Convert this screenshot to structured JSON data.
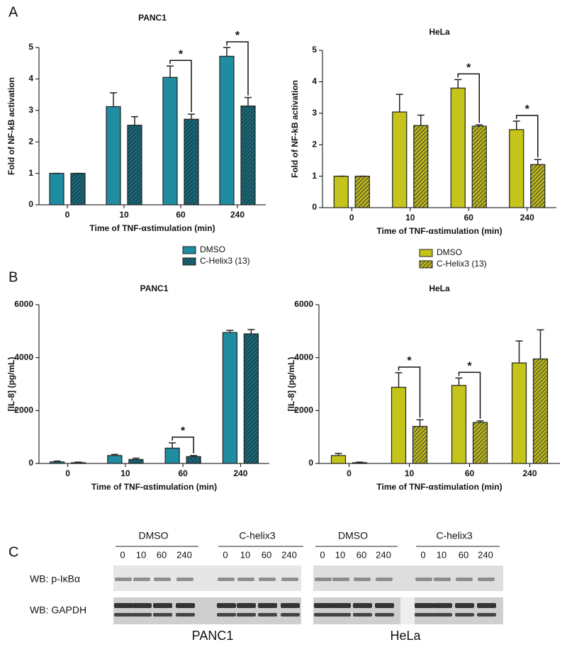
{
  "panel_labels": [
    "A",
    "B",
    "C"
  ],
  "chart_data": [
    {
      "type": "bar",
      "title": "PANC1",
      "x_label": "Time of TNF-αstimulation (min)",
      "y_label": "Fold of NF-kB activation",
      "categories": [
        "0",
        "10",
        "60",
        "240"
      ],
      "series": [
        {
          "name": "DMSO",
          "color": "#1f8ca0",
          "pattern": "solid",
          "values": [
            1,
            3.12,
            4.05,
            4.72
          ],
          "errors": [
            0,
            0.44,
            0.36,
            0.28
          ]
        },
        {
          "name": "C-Helix3 (13)",
          "color": "#17697a",
          "pattern": "hatch",
          "values": [
            1,
            2.53,
            2.72,
            3.14
          ],
          "errors": [
            0,
            0.27,
            0.16,
            0.27
          ]
        }
      ],
      "annotations": [
        null,
        null,
        "*",
        "*"
      ],
      "ylim": [
        0,
        5
      ],
      "yticks": [
        0,
        1,
        2,
        3,
        4,
        5
      ],
      "legend": true
    },
    {
      "type": "bar",
      "title": "HeLa",
      "x_label": "Time of TNF-αstimulation (min)",
      "y_label": "Fold of NF-kB activation",
      "categories": [
        "0",
        "10",
        "60",
        "240"
      ],
      "series": [
        {
          "name": "DMSO",
          "color": "#c4c41a",
          "pattern": "solid",
          "values": [
            1,
            3.04,
            3.8,
            2.48
          ],
          "errors": [
            0,
            0.56,
            0.27,
            0.27
          ]
        },
        {
          "name": "C-Helix3 (13)",
          "color": "#b8b422",
          "pattern": "hatch",
          "values": [
            1,
            2.61,
            2.59,
            1.37
          ],
          "errors": [
            0,
            0.33,
            0.04,
            0.16
          ]
        }
      ],
      "annotations": [
        null,
        null,
        "*",
        "*"
      ],
      "ylim": [
        0,
        5
      ],
      "yticks": [
        0,
        1,
        2,
        3,
        4,
        5
      ],
      "legend": true
    },
    {
      "type": "bar",
      "title": "PANC1",
      "x_label": "Time of TNF-αstimulation (min)",
      "y_label": "[IL-8] (pg/mL)",
      "categories": [
        "0",
        "10",
        "60",
        "240"
      ],
      "series": [
        {
          "name": "DMSO",
          "color": "#1f8ca0",
          "pattern": "solid",
          "values": [
            60,
            300,
            580,
            4950
          ],
          "errors": [
            30,
            40,
            200,
            80
          ]
        },
        {
          "name": "C-Helix3 (13)",
          "color": "#17697a",
          "pattern": "hatch",
          "values": [
            30,
            150,
            260,
            4900
          ],
          "errors": [
            20,
            50,
            40,
            160
          ]
        }
      ],
      "annotations": [
        null,
        null,
        "*",
        null
      ],
      "ylim": [
        0,
        6000
      ],
      "yticks": [
        0,
        2000,
        4000,
        6000
      ],
      "legend": false
    },
    {
      "type": "bar",
      "title": "HeLa",
      "x_label": "Time of TNF-αstimulation (min)",
      "y_label": "[IL-8] (pg/mL)",
      "categories": [
        "0",
        "10",
        "60",
        "240"
      ],
      "series": [
        {
          "name": "DMSO",
          "color": "#c4c41a",
          "pattern": "solid",
          "values": [
            300,
            2880,
            2950,
            3800
          ],
          "errors": [
            80,
            550,
            280,
            830
          ]
        },
        {
          "name": "C-Helix3 (13)",
          "color": "#b8b422",
          "pattern": "hatch",
          "values": [
            30,
            1400,
            1550,
            3950
          ],
          "errors": [
            20,
            250,
            60,
            1100
          ]
        }
      ],
      "annotations": [
        null,
        "*",
        "*",
        null
      ],
      "ylim": [
        0,
        6000
      ],
      "yticks": [
        0,
        2000,
        4000,
        6000
      ],
      "legend": false
    }
  ],
  "blot": {
    "groups": [
      {
        "label": "DMSO",
        "lanes": [
          "0",
          "10",
          "60",
          "240"
        ]
      },
      {
        "label": "C-helix3",
        "lanes": [
          "0",
          "10",
          "60",
          "240"
        ]
      },
      {
        "label": "DMSO",
        "lanes": [
          "0",
          "10",
          "60",
          "240"
        ]
      },
      {
        "label": "C-helix3",
        "lanes": [
          "0",
          "10",
          "60",
          "240"
        ]
      }
    ],
    "rows": [
      "WB: p-IκBα",
      "WB: GAPDH"
    ],
    "cell_lines": [
      "PANC1",
      "HeLa"
    ]
  }
}
